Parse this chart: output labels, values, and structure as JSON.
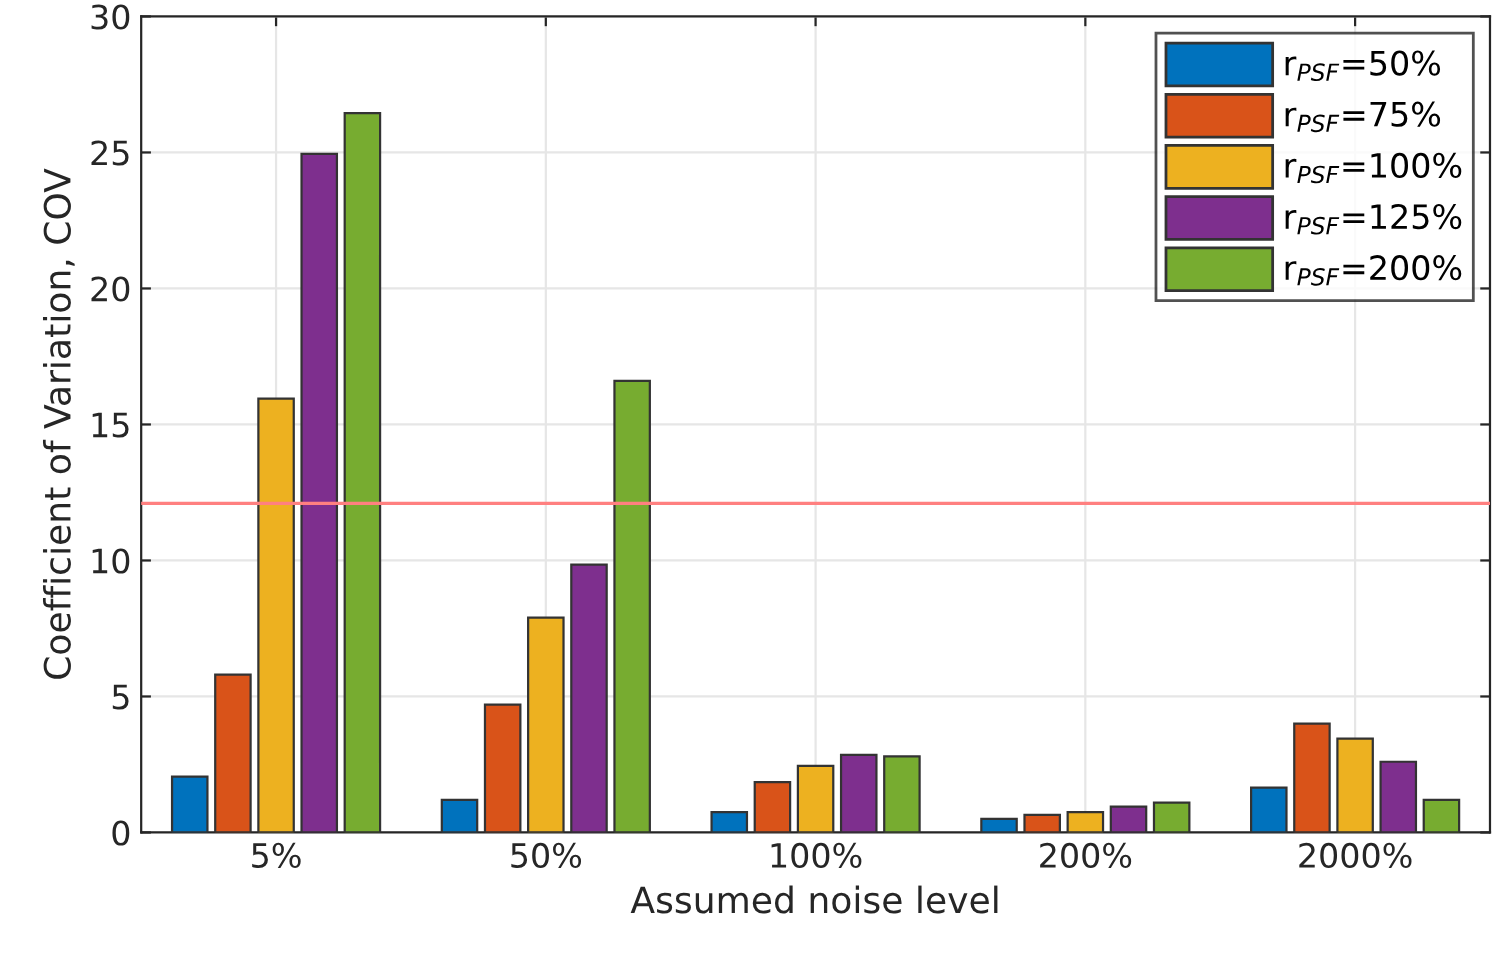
{
  "chart_data": {
    "type": "bar",
    "xlabel": "Assumed noise level",
    "ylabel": "Coefficient of Variation, COV",
    "categories": [
      "5%",
      "50%",
      "100%",
      "200%",
      "2000%"
    ],
    "series": [
      {
        "name": "r$_{PSF}$=50%",
        "color": "#0072bd",
        "values": [
          2.05,
          1.2,
          0.75,
          0.5,
          1.65
        ]
      },
      {
        "name": "r$_{PSF}$=75%",
        "color": "#d95319",
        "values": [
          5.8,
          4.7,
          1.85,
          0.65,
          4.0
        ]
      },
      {
        "name": "r$_{PSF}$=100%",
        "color": "#edb120",
        "values": [
          15.95,
          7.9,
          2.45,
          0.75,
          3.45
        ]
      },
      {
        "name": "r$_{PSF}$=125%",
        "color": "#7e2f8e",
        "values": [
          24.95,
          9.85,
          2.85,
          0.95,
          2.6
        ]
      },
      {
        "name": "r$_{PSF}$=200%",
        "color": "#77ac30",
        "values": [
          26.45,
          16.6,
          2.8,
          1.1,
          1.2
        ]
      }
    ],
    "ylim": [
      0,
      30
    ],
    "yticks": [
      0,
      5,
      10,
      15,
      20,
      25,
      30
    ],
    "ref_lines": [
      {
        "axis": "y",
        "value": 12.1,
        "color": "#ff8080"
      }
    ],
    "grid": true,
    "legend": "top right"
  }
}
